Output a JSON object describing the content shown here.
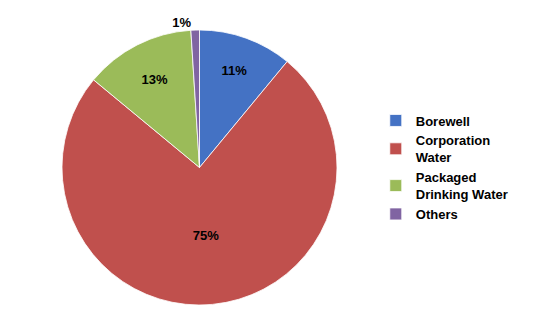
{
  "chart_data": {
    "type": "pie",
    "categories": [
      "Borewell",
      "Corporation\nWater",
      "Packaged\nDrinking Water",
      "Others"
    ],
    "values": [
      11,
      75,
      13,
      1
    ],
    "value_labels": [
      "11%",
      "75%",
      "13%",
      "1%"
    ],
    "colors": [
      "#4472C4",
      "#C0504D",
      "#9BBB59",
      "#8064A2"
    ],
    "data_labels": true,
    "legend": "right"
  }
}
